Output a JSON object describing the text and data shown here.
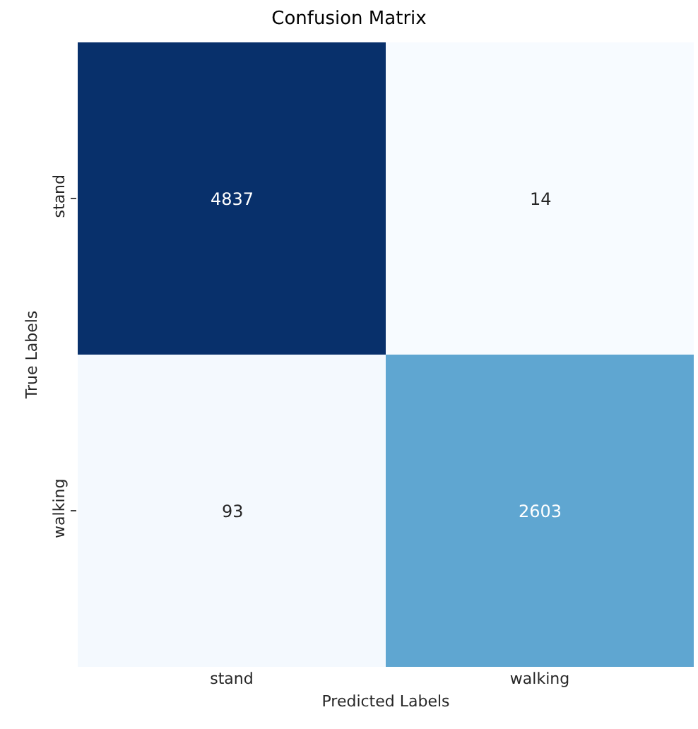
{
  "chart_data": {
    "type": "heatmap",
    "title": "Confusion Matrix",
    "xlabel": "Predicted Labels",
    "ylabel": "True Labels",
    "categories": [
      "stand",
      "walking"
    ],
    "y_categories": [
      "stand",
      "walking"
    ],
    "cells": [
      [
        4837,
        14
      ],
      [
        93,
        2603
      ]
    ],
    "data_labels": true
  }
}
